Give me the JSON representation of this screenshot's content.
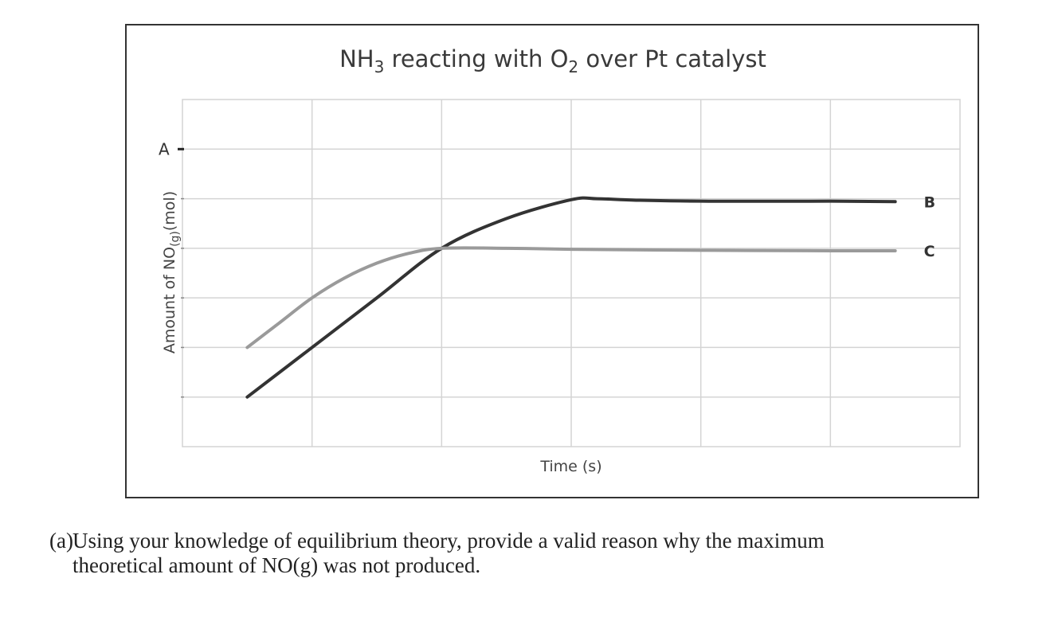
{
  "question": {
    "label": "(a)",
    "line1": "Using your knowledge of equilibrium theory, provide a valid reason why the maximum",
    "line2": "theoretical amount of NO(g) was not produced."
  },
  "chart_data": {
    "type": "line",
    "title": {
      "prefix": "NH",
      "sub1": "3",
      "middle": " reacting with O",
      "sub2": "2",
      "suffix": " over Pt catalyst"
    },
    "xlabel": "Time (s)",
    "ylabel": {
      "prefix": "Amount of NO",
      "sub": "(g)",
      "suffix": "(mol)"
    },
    "xlim": [
      0,
      6
    ],
    "ylim": [
      0,
      7
    ],
    "grid": true,
    "y_marker": {
      "label": "A",
      "y": 6
    },
    "series": [
      {
        "name": "B",
        "color": "#333333",
        "points": [
          [
            0.5,
            1.0
          ],
          [
            1.0,
            2.0
          ],
          [
            1.5,
            3.0
          ],
          [
            2.0,
            4.0
          ],
          [
            2.5,
            4.6
          ],
          [
            3.0,
            4.98
          ],
          [
            3.2,
            5.0
          ],
          [
            3.5,
            4.97
          ],
          [
            4.0,
            4.95
          ],
          [
            5.0,
            4.95
          ],
          [
            5.5,
            4.94
          ]
        ]
      },
      {
        "name": "C",
        "color": "#9a9a9a",
        "points": [
          [
            0.5,
            2.0
          ],
          [
            0.75,
            2.5
          ],
          [
            1.0,
            3.0
          ],
          [
            1.25,
            3.4
          ],
          [
            1.5,
            3.7
          ],
          [
            1.75,
            3.9
          ],
          [
            2.0,
            4.0
          ],
          [
            2.5,
            4.0
          ],
          [
            3.0,
            3.98
          ],
          [
            4.0,
            3.96
          ],
          [
            5.0,
            3.95
          ],
          [
            5.5,
            3.95
          ]
        ]
      }
    ]
  }
}
